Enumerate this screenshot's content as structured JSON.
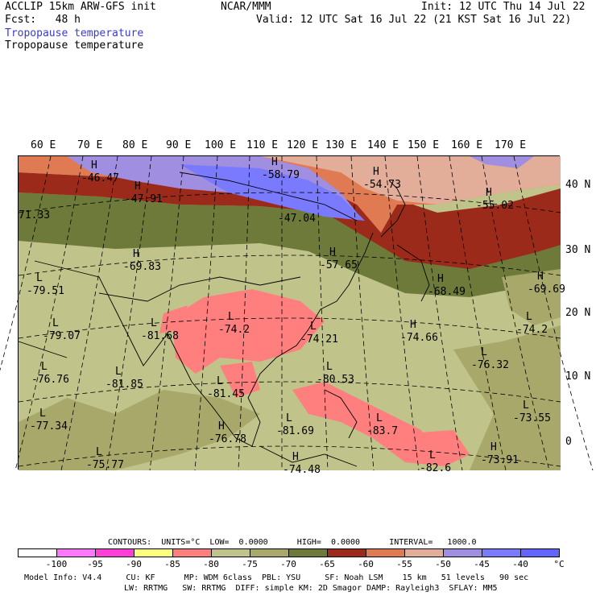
{
  "header": {
    "model": "ACCLIP 15km ARW-GFS init",
    "forecast": "Fcst:   48 h",
    "center": "NCAR/MMM",
    "init": "Init: 12 UTC Thu 14 Jul 22",
    "valid": "Valid: 12 UTC Sat 16 Jul 22 (21 KST Sat 16 Jul 22)",
    "field_blue": "Tropopause temperature",
    "field_black": "Tropopause temperature"
  },
  "map": {
    "lon_labels": [
      "60 E",
      "70 E",
      "80 E",
      "90 E",
      "100 E",
      "110 E",
      "120 E",
      "130 E",
      "140 E",
      "150 E",
      "160 E",
      "170 E"
    ],
    "lat_labels": [
      "40 N",
      "30 N",
      "20 N",
      "10 N",
      "0"
    ],
    "extrema": [
      {
        "t": "H",
        "v": "-46.47"
      },
      {
        "t": "H",
        "v": "-58.79"
      },
      {
        "t": "H",
        "v": "-54.73"
      },
      {
        "t": "H",
        "v": "-47.91"
      },
      {
        "t": "",
        "v": "-47.04"
      },
      {
        "t": "H",
        "v": "-55.02"
      },
      {
        "t": "",
        "v": "71.33"
      },
      {
        "t": "H",
        "v": "-69.83"
      },
      {
        "t": "H",
        "v": "-57.65"
      },
      {
        "t": "L",
        "v": "-79.51"
      },
      {
        "t": "H",
        "v": "-68.49"
      },
      {
        "t": "H",
        "v": "-69.69"
      },
      {
        "t": "L",
        "v": "-79.07"
      },
      {
        "t": "L",
        "v": "-81.68"
      },
      {
        "t": "L",
        "v": "-74.2"
      },
      {
        "t": "L",
        "v": "-74.21"
      },
      {
        "t": "H",
        "v": "-74.66"
      },
      {
        "t": "L",
        "v": "-74.2"
      },
      {
        "t": "L",
        "v": "-76.76"
      },
      {
        "t": "L",
        "v": "-81.85"
      },
      {
        "t": "L",
        "v": "-76.32"
      },
      {
        "t": "L",
        "v": "-81.45"
      },
      {
        "t": "L",
        "v": "-80.53"
      },
      {
        "t": "L",
        "v": "-73.55"
      },
      {
        "t": "L",
        "v": "-77.34"
      },
      {
        "t": "H",
        "v": "-76.78"
      },
      {
        "t": "L",
        "v": "-81.69"
      },
      {
        "t": "L",
        "v": "-83.7"
      },
      {
        "t": "H",
        "v": "-73.91"
      },
      {
        "t": "L",
        "v": "-75.77"
      },
      {
        "t": "H",
        "v": "-74.48"
      },
      {
        "t": "L",
        "v": "-82.6"
      }
    ]
  },
  "colorbar": {
    "contours_line": "CONTOURS:  UNITS=°C  LOW=  0.0000      HIGH=  0.0000      INTERVAL=   1000.0",
    "colors": [
      "#ffffff",
      "#ff78ff",
      "#ff40d8",
      "#ffff80",
      "#ff7e7e",
      "#c0c48a",
      "#a8a86a",
      "#6e7a3a",
      "#9c2a1a",
      "#e07a52",
      "#e2ae9a",
      "#a08ee0",
      "#7a7aff",
      "#6464ff"
    ],
    "labels": [
      "-100",
      "-95",
      "-90",
      "-85",
      "-80",
      "-75",
      "-70",
      "-65",
      "-60",
      "-55",
      "-50",
      "-45",
      "-40",
      "°C"
    ]
  },
  "footer": {
    "line1": "Model Info: V4.4     CU: KF      MP: WDM 6class  PBL: YSU     SF: Noah LSM    15 km   51 levels   90 sec",
    "line2": "LW: RRTMG   SW: RRTMG  DIFF: simple KM: 2D Smagor DAMP: Rayleigh3  SFLAY: MM5"
  }
}
